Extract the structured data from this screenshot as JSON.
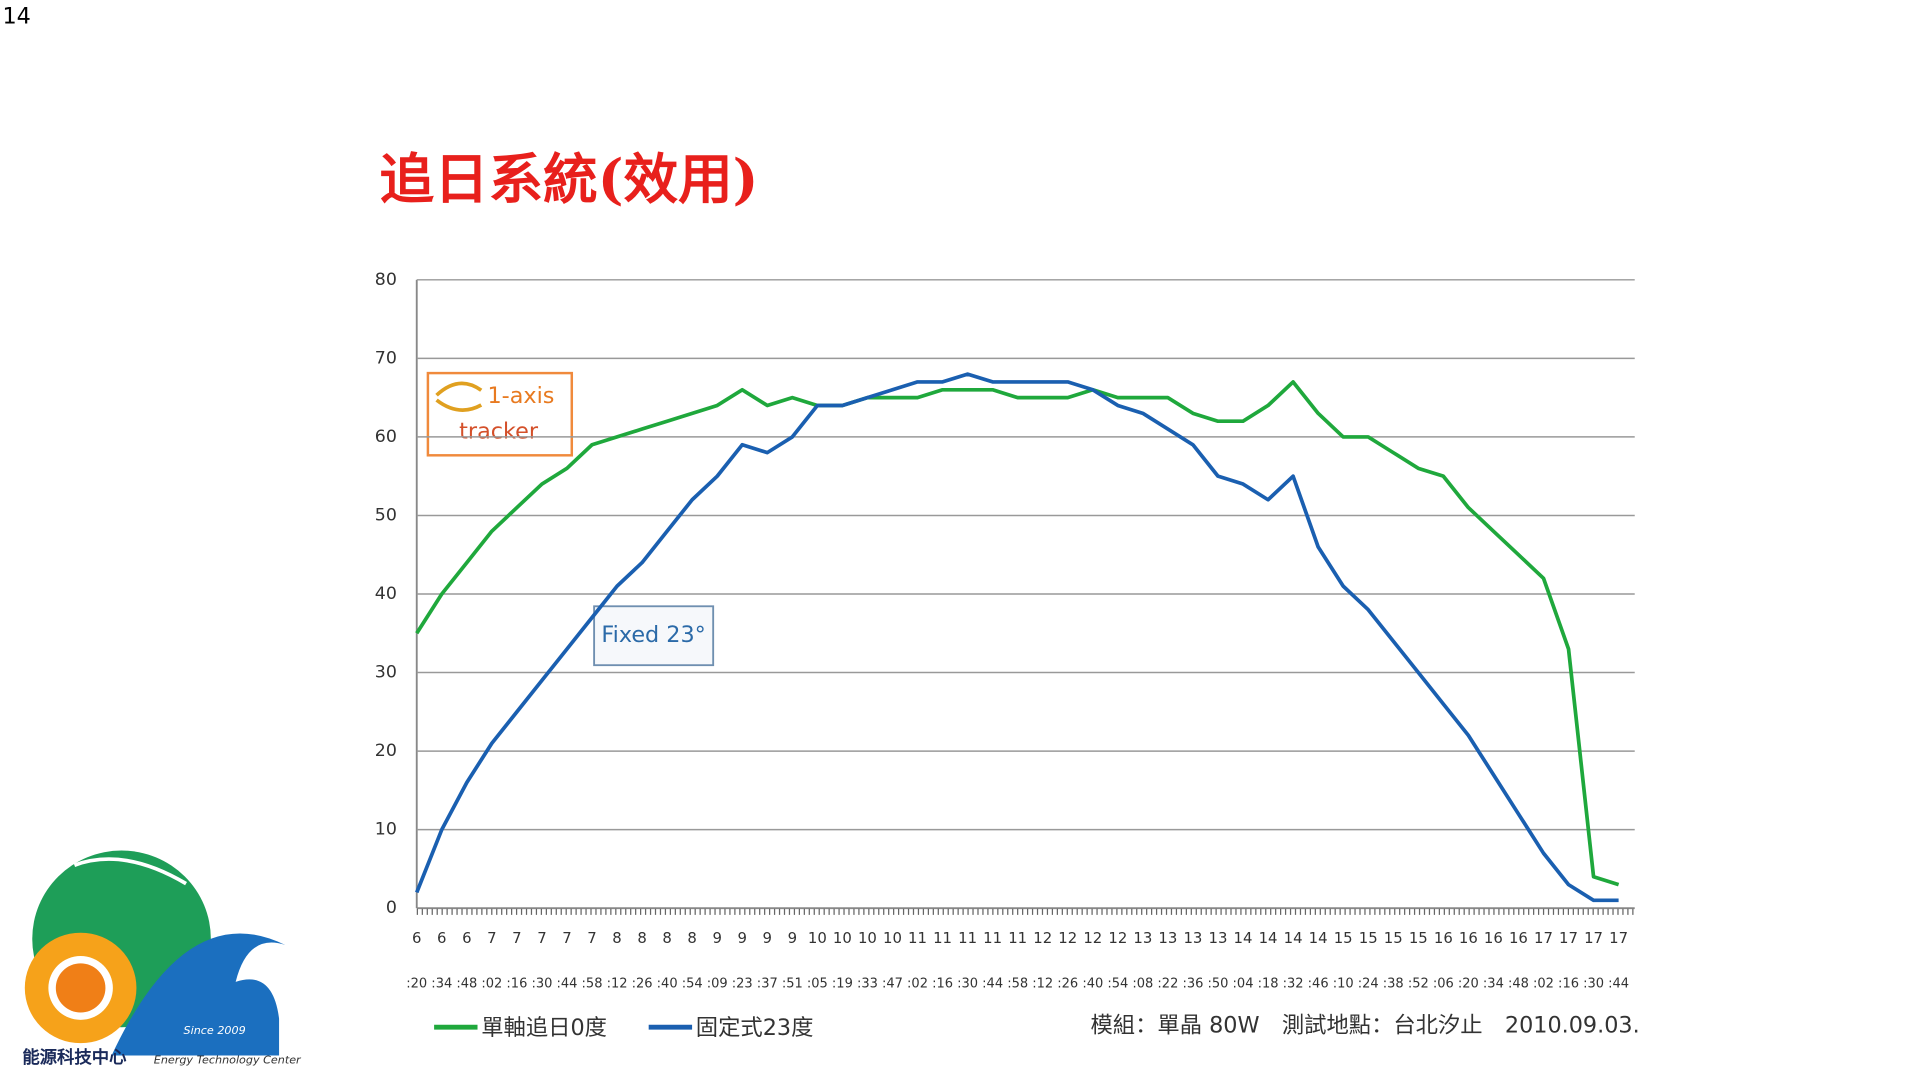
{
  "page_number": "14",
  "chart_data": {
    "type": "line",
    "title": "追日系統(效用)",
    "categories": [
      "6",
      "6",
      "6",
      "7",
      "7",
      "7",
      "7",
      "7",
      "8",
      "8",
      "8",
      "8",
      "9",
      "9",
      "9",
      "9",
      "10",
      "10",
      "10",
      "10",
      "11",
      "11",
      "11",
      "11",
      "11",
      "12",
      "12",
      "12",
      "12",
      "13",
      "13",
      "13",
      "13",
      "14",
      "14",
      "14",
      "14",
      "15",
      "15",
      "15",
      "15",
      "16",
      "16",
      "16",
      "16",
      "17",
      "17",
      "17",
      "17"
    ],
    "category_minutes": [
      ":20",
      ":34",
      ":48",
      ":02",
      ":16",
      ":30",
      ":44",
      ":58",
      ":12",
      ":26",
      ":40",
      ":54",
      ":09",
      ":23",
      ":37",
      ":51",
      ":05",
      ":19",
      ":33",
      ":47",
      ":02",
      ":16",
      ":30",
      ":44",
      ":58",
      ":12",
      ":26",
      ":40",
      ":54",
      ":08",
      ":22",
      ":36",
      ":50",
      ":04",
      ":18",
      ":32",
      ":46",
      ":10",
      ":24",
      ":38",
      ":52",
      ":06",
      ":20",
      ":34",
      ":48",
      ":02",
      ":16",
      ":30",
      ":44"
    ],
    "series": [
      {
        "name": "單軸追日0度",
        "color": "#1fa83c",
        "values": [
          35,
          40,
          44,
          48,
          51,
          54,
          56,
          59,
          60,
          61,
          62,
          63,
          64,
          66,
          64,
          65,
          64,
          64,
          65,
          65,
          65,
          66,
          66,
          66,
          65,
          65,
          65,
          66,
          65,
          65,
          65,
          63,
          62,
          62,
          64,
          67,
          63,
          60,
          60,
          58,
          56,
          55,
          51,
          48,
          45,
          42,
          33,
          4,
          3
        ]
      },
      {
        "name": "固定式23度",
        "color": "#1a5fb0",
        "values": [
          2,
          10,
          16,
          21,
          25,
          29,
          33,
          37,
          41,
          44,
          48,
          52,
          55,
          59,
          58,
          60,
          64,
          64,
          65,
          66,
          67,
          67,
          68,
          67,
          67,
          67,
          67,
          66,
          64,
          63,
          61,
          59,
          55,
          54,
          52,
          55,
          46,
          41,
          38,
          34,
          30,
          26,
          22,
          17,
          12,
          7,
          3,
          1,
          1
        ]
      }
    ],
    "ylim": [
      0,
      80
    ],
    "yticks": [
      0,
      10,
      20,
      30,
      40,
      50,
      60,
      70,
      80
    ],
    "grid": true,
    "annotations": [
      "1-axis",
      "tracker",
      "Fixed 23°"
    ],
    "note": "模組：單晶 80W　測試地點：台北汐止　2010.09.03."
  },
  "logo": {
    "name": "能源科技中心",
    "subtitle": "Energy Technology Center",
    "since": "Since 2009"
  }
}
